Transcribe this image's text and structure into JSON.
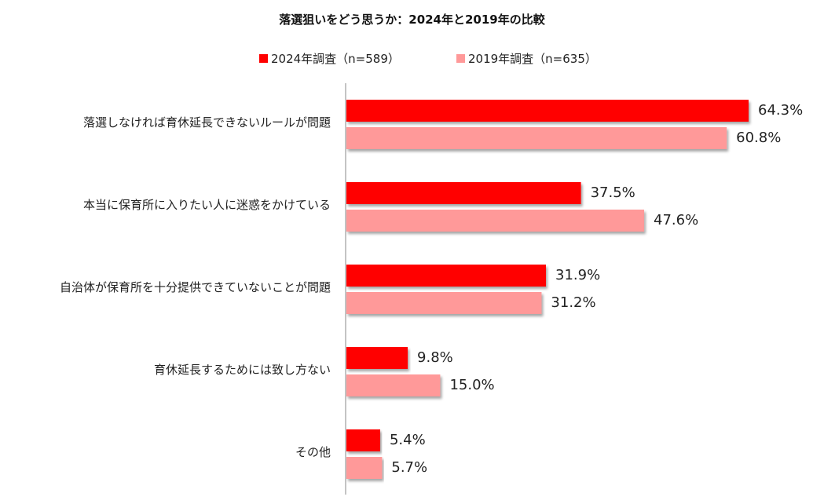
{
  "chart_data": {
    "type": "bar",
    "orientation": "horizontal",
    "title": "落選狙いをどう思うか：2024年と2019年の比較",
    "categories": [
      "落選しなければ育休延長できないルールが問題",
      "本当に保育所に入りたい人に迷惑をかけている",
      "自治体が保育所を十分提供できていないことが問題",
      "育休延長するためには致し方ない",
      "その他"
    ],
    "series": [
      {
        "name": "2024年調査（n=589）",
        "color": "#ff0000",
        "values": [
          64.3,
          37.5,
          31.9,
          9.8,
          5.4
        ]
      },
      {
        "name": "2019年調査（n=635）",
        "color": "#ff9999",
        "values": [
          60.8,
          47.6,
          31.2,
          15.0,
          5.7
        ]
      }
    ],
    "value_labels": [
      [
        "64.3%",
        "37.5%",
        "31.9%",
        "9.8%",
        "5.4%"
      ],
      [
        "60.8%",
        "47.6%",
        "31.2%",
        "15.0%",
        "5.7%"
      ]
    ],
    "xlim": [
      0,
      70
    ],
    "grid": false,
    "legend_position": "top"
  }
}
